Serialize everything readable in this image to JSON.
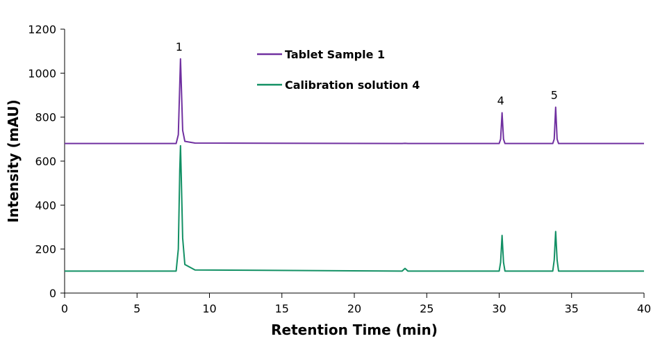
{
  "chart_data": {
    "type": "line",
    "x_label": "Retention Time (min)",
    "y_label": "Intensity (mAU)",
    "x": [
      0,
      7.7,
      7.85,
      7.95,
      8.0,
      8.05,
      8.15,
      8.3,
      9,
      23.3,
      23.5,
      23.7,
      30.0,
      30.1,
      30.2,
      30.3,
      30.4,
      33.7,
      33.8,
      33.9,
      34.0,
      34.1,
      40
    ],
    "series": [
      {
        "name": "Tablet Sample 1",
        "color": "#7030a0",
        "values": [
          680,
          680,
          720,
          950,
          1065,
          960,
          740,
          690,
          682,
          680,
          681,
          680,
          680,
          700,
          820,
          700,
          680,
          680,
          700,
          845,
          700,
          680,
          680
        ]
      },
      {
        "name": "Calibration solution 4",
        "color": "#129064",
        "values": [
          100,
          100,
          200,
          560,
          670,
          540,
          250,
          130,
          105,
          100,
          112,
          100,
          100,
          140,
          262,
          140,
          100,
          100,
          150,
          280,
          150,
          100,
          100
        ]
      }
    ],
    "annotations": [
      {
        "text": "1",
        "x": 8.0
      },
      {
        "text": "4",
        "x": 30.2
      },
      {
        "text": "5",
        "x": 33.9
      }
    ],
    "xlim": [
      0,
      40
    ],
    "xticks": [
      0,
      5,
      10,
      15,
      20,
      25,
      30,
      35,
      40
    ],
    "ylim": [
      0,
      1200
    ],
    "yticks": [
      0,
      200,
      400,
      600,
      800,
      1000,
      1200
    ],
    "legend": "upper center"
  }
}
